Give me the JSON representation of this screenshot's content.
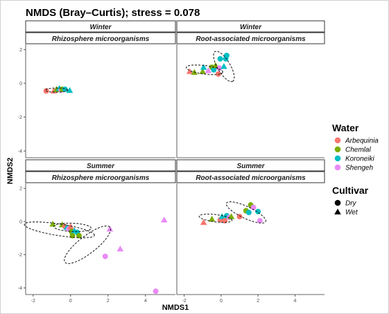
{
  "chart_data": {
    "type": "scatter",
    "title": "NMDS (Bray–Curtis); stress = 0.078",
    "xlabel": "NMDS1",
    "ylabel": "NMDS2",
    "xlim": [
      -2.4,
      5.6
    ],
    "ylim": [
      -4.4,
      2.3
    ],
    "x_ticks": [
      "-2",
      "0",
      "2",
      "4"
    ],
    "y_ticks": [
      "2",
      "0",
      "-2",
      "-4"
    ],
    "grid": false,
    "legend_position": "right",
    "legends": [
      {
        "title": "Water",
        "type": "color",
        "entries": [
          {
            "label": "Arbequinia",
            "color": "#F8766D"
          },
          {
            "label": "Chemlal",
            "color": "#7CAE00"
          },
          {
            "label": "Koroneiki",
            "color": "#00BFC4"
          },
          {
            "label": "Shengeh",
            "color": "#E98AF7"
          }
        ]
      },
      {
        "title": "Cultivar",
        "type": "shape",
        "entries": [
          {
            "label": "Dry",
            "shape": "circle"
          },
          {
            "label": "Wet",
            "shape": "triangle"
          }
        ]
      }
    ],
    "panels": [
      {
        "season": "Winter",
        "compartment": "Rhizosphere microorganisms",
        "points": [
          {
            "x": -1.3,
            "y": -0.45,
            "water": "Arbequinia",
            "cultivar": "Dry"
          },
          {
            "x": -0.9,
            "y": -0.45,
            "water": "Arbequinia",
            "cultivar": "Wet"
          },
          {
            "x": -0.75,
            "y": -0.35,
            "water": "Chemlal",
            "cultivar": "Wet"
          },
          {
            "x": -0.6,
            "y": -0.3,
            "water": "Koroneiki",
            "cultivar": "Wet"
          },
          {
            "x": -0.5,
            "y": -0.4,
            "water": "Shengeh",
            "cultivar": "Dry"
          },
          {
            "x": -0.45,
            "y": -0.35,
            "water": "Chemlal",
            "cultivar": "Dry"
          },
          {
            "x": -0.3,
            "y": -0.35,
            "water": "Koroneiki",
            "cultivar": "Dry"
          },
          {
            "x": -0.05,
            "y": -0.42,
            "water": "Koroneiki",
            "cultivar": "Wet"
          }
        ],
        "ellipses": [
          {
            "cx": -0.75,
            "cy": -0.4,
            "rx": 0.6,
            "ry": 0.12,
            "angle": 0
          }
        ]
      },
      {
        "season": "Winter",
        "compartment": "Root-associated microorganisms",
        "points": [
          {
            "x": -1.7,
            "y": 0.7,
            "water": "Arbequinia",
            "cultivar": "Wet"
          },
          {
            "x": -1.45,
            "y": 0.65,
            "water": "Chemlal",
            "cultivar": "Wet"
          },
          {
            "x": -1.0,
            "y": 0.7,
            "water": "Chemlal",
            "cultivar": "Wet"
          },
          {
            "x": -0.95,
            "y": 0.95,
            "water": "Koroneiki",
            "cultivar": "Wet"
          },
          {
            "x": -0.7,
            "y": 0.75,
            "water": "Shengeh",
            "cultivar": "Wet"
          },
          {
            "x": -0.5,
            "y": 0.95,
            "water": "Chemlal",
            "cultivar": "Dry"
          },
          {
            "x": -0.4,
            "y": 0.8,
            "water": "Koroneiki",
            "cultivar": "Dry"
          },
          {
            "x": -0.3,
            "y": 1.05,
            "water": "Chemlal",
            "cultivar": "Wet"
          },
          {
            "x": -0.15,
            "y": 0.55,
            "water": "Arbequinia",
            "cultivar": "Dry"
          },
          {
            "x": -0.1,
            "y": 0.9,
            "water": "Shengeh",
            "cultivar": "Dry"
          },
          {
            "x": -0.05,
            "y": 1.45,
            "water": "Koroneiki",
            "cultivar": "Dry"
          },
          {
            "x": 0.15,
            "y": 1.0,
            "water": "Koroneiki",
            "cultivar": "Wet"
          },
          {
            "x": 0.25,
            "y": 1.45,
            "water": "Koroneiki",
            "cultivar": "Dry"
          },
          {
            "x": 0.3,
            "y": 1.65,
            "water": "Koroneiki",
            "cultivar": "Dry"
          }
        ],
        "ellipses": [
          {
            "cx": -0.9,
            "cy": 0.8,
            "rx": 1.0,
            "ry": 0.25,
            "angle": -8
          },
          {
            "cx": 0.15,
            "cy": 1.0,
            "rx": 1.0,
            "ry": 0.35,
            "angle": -62
          }
        ]
      },
      {
        "season": "Summer",
        "compartment": "Rhizosphere microorganisms",
        "points": [
          {
            "x": -0.95,
            "y": -0.15,
            "water": "Chemlal",
            "cultivar": "Wet"
          },
          {
            "x": -0.45,
            "y": -0.2,
            "water": "Chemlal",
            "cultivar": "Wet"
          },
          {
            "x": -0.3,
            "y": -0.3,
            "water": "Arbequinia",
            "cultivar": "Dry"
          },
          {
            "x": -0.2,
            "y": -0.35,
            "water": "Koroneiki",
            "cultivar": "Wet"
          },
          {
            "x": -0.1,
            "y": -0.45,
            "water": "Shengeh",
            "cultivar": "Dry"
          },
          {
            "x": 0.0,
            "y": -0.3,
            "water": "Arbequinia",
            "cultivar": "Wet"
          },
          {
            "x": 0.05,
            "y": -0.6,
            "water": "Chemlal",
            "cultivar": "Dry"
          },
          {
            "x": 0.1,
            "y": -0.85,
            "water": "Chemlal",
            "cultivar": "Dry"
          },
          {
            "x": 0.2,
            "y": -0.55,
            "water": "Koroneiki",
            "cultivar": "Wet"
          },
          {
            "x": 0.35,
            "y": -0.65,
            "water": "Koroneiki",
            "cultivar": "Dry"
          },
          {
            "x": 0.45,
            "y": -0.85,
            "water": "Chemlal",
            "cultivar": "Dry"
          },
          {
            "x": 2.1,
            "y": -0.45,
            "water": "Shengeh",
            "cultivar": "Wet"
          },
          {
            "x": 2.65,
            "y": -1.65,
            "water": "Shengeh",
            "cultivar": "Wet"
          },
          {
            "x": 1.85,
            "y": -2.1,
            "water": "Shengeh",
            "cultivar": "Dry"
          },
          {
            "x": 5.0,
            "y": 0.1,
            "water": "Shengeh",
            "cultivar": "Wet"
          },
          {
            "x": 4.55,
            "y": -4.2,
            "water": "Shengeh",
            "cultivar": "Dry"
          }
        ],
        "ellipses": [
          {
            "cx": -0.6,
            "cy": -0.5,
            "rx": 1.9,
            "ry": 0.35,
            "angle": -10
          },
          {
            "cx": 0.1,
            "cy": -0.35,
            "rx": 1.0,
            "ry": 0.25,
            "angle": -3
          },
          {
            "cx": 0.9,
            "cy": -1.4,
            "rx": 1.6,
            "ry": 0.5,
            "angle": 42
          }
        ]
      },
      {
        "season": "Summer",
        "compartment": "Root-associated microorganisms",
        "points": [
          {
            "x": -0.95,
            "y": -0.05,
            "water": "Arbequinia",
            "cultivar": "Wet"
          },
          {
            "x": -0.5,
            "y": 0.15,
            "water": "Chemlal",
            "cultivar": "Wet"
          },
          {
            "x": -0.05,
            "y": 0.1,
            "water": "Arbequinia",
            "cultivar": "Dry"
          },
          {
            "x": 0.05,
            "y": 0.3,
            "water": "Koroneiki",
            "cultivar": "Wet"
          },
          {
            "x": 0.2,
            "y": 0.05,
            "water": "Arbequinia",
            "cultivar": "Dry"
          },
          {
            "x": 0.3,
            "y": 0.35,
            "water": "Koroneiki",
            "cultivar": "Dry"
          },
          {
            "x": 0.45,
            "y": 0.25,
            "water": "Shengeh",
            "cultivar": "Dry"
          },
          {
            "x": 0.55,
            "y": 0.3,
            "water": "Chemlal",
            "cultivar": "Wet"
          },
          {
            "x": 1.0,
            "y": 0.3,
            "water": "Arbequinia",
            "cultivar": "Dry"
          },
          {
            "x": 1.35,
            "y": 0.65,
            "water": "Chemlal",
            "cultivar": "Dry"
          },
          {
            "x": 1.5,
            "y": 0.55,
            "water": "Koroneiki",
            "cultivar": "Dry"
          },
          {
            "x": 1.6,
            "y": 1.0,
            "water": "Chemlal",
            "cultivar": "Dry"
          },
          {
            "x": 1.75,
            "y": 0.85,
            "water": "Shengeh",
            "cultivar": "Dry"
          },
          {
            "x": 2.0,
            "y": 0.6,
            "water": "Koroneiki",
            "cultivar": "Dry"
          },
          {
            "x": 2.1,
            "y": 0.05,
            "water": "Shengeh",
            "cultivar": "Dry"
          }
        ],
        "ellipses": [
          {
            "cx": -0.3,
            "cy": 0.2,
            "rx": 0.9,
            "ry": 0.22,
            "angle": -8
          },
          {
            "cx": 1.35,
            "cy": 0.55,
            "rx": 1.2,
            "ry": 0.35,
            "angle": -28
          }
        ]
      }
    ]
  }
}
